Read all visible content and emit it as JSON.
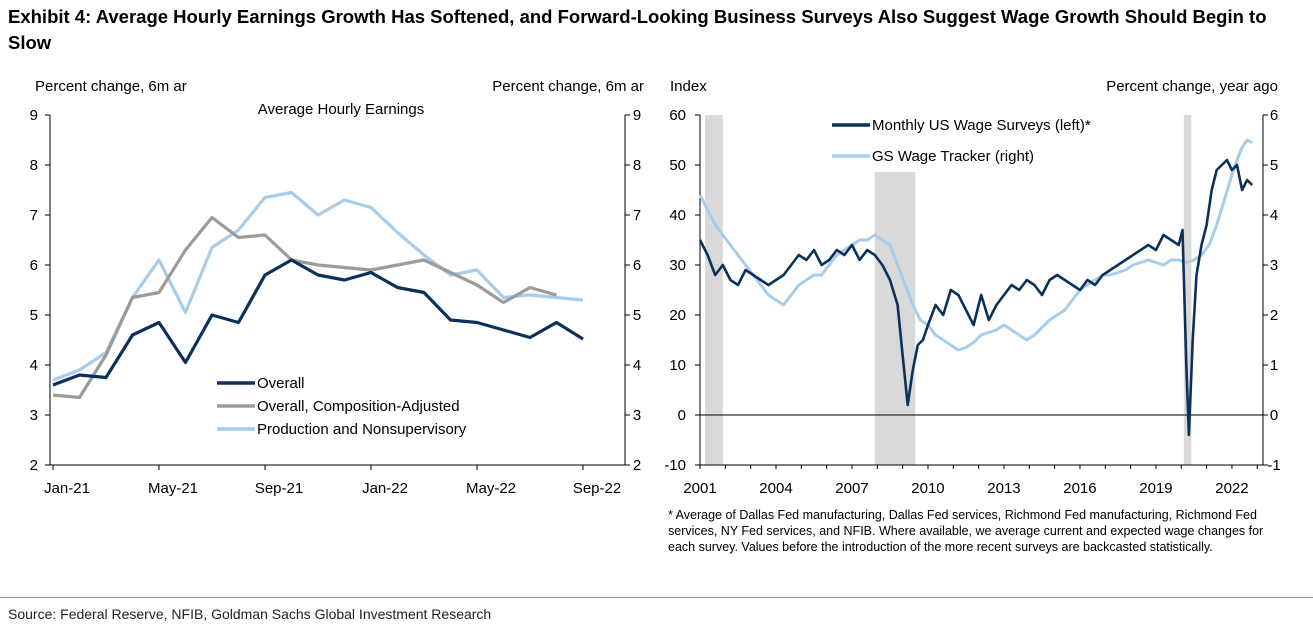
{
  "title": "Exhibit 4: Average Hourly Earnings Growth Has Softened, and Forward-Looking Business Surveys Also Suggest Wage Growth Should Begin to Slow",
  "footnote": "* Average of Dallas Fed manufacturing, Dallas Fed services, Richmond Fed manufacturing, Richmond Fed services, NY Fed services, and NFIB.  Where available, we average current and expected wage changes for each survey. Values before the introduction of the more recent surveys are backcasted statistically.",
  "source": "Source: Federal Reserve, NFIB, Goldman Sachs Global Investment Research",
  "colors": {
    "navy": "#0b3158",
    "gray": "#9b9b9b",
    "light_blue": "#a7cdea",
    "recession": "#d9d9d9"
  },
  "chart_data": [
    {
      "type": "line",
      "title": "Average Hourly Earnings",
      "ylabel_left": "Percent change, 6m ar",
      "ylabel_right": "Percent change, 6m ar",
      "ylim": [
        2,
        9
      ],
      "yticks": [
        "2",
        "3",
        "4",
        "5",
        "6",
        "7",
        "8",
        "9"
      ],
      "xticks": [
        "Jan-21",
        "May-21",
        "Sep-21",
        "Jan-22",
        "May-22",
        "Sep-22"
      ],
      "x": [
        "Jan-21",
        "Feb-21",
        "Mar-21",
        "Apr-21",
        "May-21",
        "Jun-21",
        "Jul-21",
        "Aug-21",
        "Sep-21",
        "Oct-21",
        "Nov-21",
        "Dec-21",
        "Jan-22",
        "Feb-22",
        "Mar-22",
        "Apr-22",
        "May-22",
        "Jun-22",
        "Jul-22",
        "Aug-22",
        "Sep-22"
      ],
      "legend_position": "bottom-left",
      "series": [
        {
          "name": "Overall",
          "color": "#0b3158",
          "values": [
            3.6,
            3.8,
            3.75,
            4.6,
            4.85,
            4.05,
            5.0,
            4.85,
            5.8,
            6.1,
            5.8,
            5.7,
            5.85,
            5.55,
            5.45,
            4.9,
            4.85,
            4.7,
            4.55,
            4.85,
            4.52
          ]
        },
        {
          "name": "Overall, Composition-Adjusted",
          "color": "#9b9b9b",
          "values": [
            3.4,
            3.35,
            4.2,
            5.35,
            5.45,
            6.3,
            6.95,
            6.55,
            6.6,
            6.1,
            6.0,
            5.95,
            5.9,
            6.0,
            6.1,
            5.85,
            5.6,
            5.25,
            5.55,
            5.4,
            null
          ]
        },
        {
          "name": "Production and Nonsupervisory",
          "color": "#a7cdea",
          "values": [
            3.7,
            3.9,
            4.25,
            5.35,
            6.1,
            5.05,
            6.35,
            6.7,
            7.35,
            7.45,
            7.0,
            7.3,
            7.15,
            6.65,
            6.2,
            5.8,
            5.9,
            5.35,
            5.4,
            5.35,
            5.3
          ]
        }
      ]
    },
    {
      "type": "line",
      "ylabel_left": "Index",
      "ylabel_right": "Percent change, year ago",
      "ylim_left": [
        -10,
        60
      ],
      "ylim_right": [
        -1,
        6
      ],
      "yticks_left": [
        "-10",
        "0",
        "10",
        "20",
        "30",
        "40",
        "50",
        "60"
      ],
      "yticks_right": [
        "-1",
        "0",
        "1",
        "2",
        "3",
        "4",
        "5",
        "6"
      ],
      "xticks": [
        "2001",
        "2004",
        "2007",
        "2010",
        "2013",
        "2016",
        "2019",
        "2022"
      ],
      "xlim": [
        2001,
        2023.2
      ],
      "recessions": [
        [
          2001.2,
          2001.9
        ],
        [
          2007.9,
          2009.5
        ],
        [
          2020.1,
          2020.4
        ]
      ],
      "legend_position": "top-center",
      "series": [
        {
          "name": "Monthly US Wage Surveys (left)*",
          "color": "#0b3158",
          "axis": "left",
          "x": [
            2001.0,
            2001.3,
            2001.6,
            2001.9,
            2002.2,
            2002.5,
            2002.8,
            2003.1,
            2003.4,
            2003.7,
            2004.0,
            2004.3,
            2004.6,
            2004.9,
            2005.2,
            2005.5,
            2005.8,
            2006.1,
            2006.4,
            2006.7,
            2007.0,
            2007.3,
            2007.6,
            2007.9,
            2008.2,
            2008.5,
            2008.8,
            2009.0,
            2009.2,
            2009.4,
            2009.6,
            2009.8,
            2010.0,
            2010.3,
            2010.6,
            2010.9,
            2011.2,
            2011.5,
            2011.8,
            2012.1,
            2012.4,
            2012.7,
            2013.0,
            2013.3,
            2013.6,
            2013.9,
            2014.2,
            2014.5,
            2014.8,
            2015.1,
            2015.4,
            2015.7,
            2016.0,
            2016.3,
            2016.6,
            2016.9,
            2017.2,
            2017.5,
            2017.8,
            2018.1,
            2018.4,
            2018.7,
            2019.0,
            2019.3,
            2019.6,
            2019.9,
            2020.05,
            2020.2,
            2020.3,
            2020.45,
            2020.6,
            2020.8,
            2021.0,
            2021.2,
            2021.4,
            2021.6,
            2021.8,
            2022.0,
            2022.2,
            2022.4,
            2022.6,
            2022.8
          ],
          "values": [
            35,
            32,
            28,
            30,
            27,
            26,
            29,
            28,
            27,
            26,
            27,
            28,
            30,
            32,
            31,
            33,
            30,
            31,
            33,
            32,
            34,
            31,
            33,
            32,
            30,
            27,
            22,
            12,
            2,
            9,
            14,
            15,
            18,
            22,
            20,
            25,
            24,
            21,
            18,
            24,
            19,
            22,
            24,
            26,
            25,
            27,
            26,
            24,
            27,
            28,
            27,
            26,
            25,
            27,
            26,
            28,
            29,
            30,
            31,
            32,
            33,
            34,
            33,
            36,
            35,
            34,
            37,
            10,
            -4,
            15,
            28,
            34,
            38,
            45,
            49,
            50,
            51,
            49,
            50,
            45,
            47,
            46
          ]
        },
        {
          "name": "GS Wage Tracker (right)",
          "color": "#a7cdea",
          "axis": "right",
          "x": [
            2001.0,
            2001.3,
            2001.6,
            2001.9,
            2002.2,
            2002.5,
            2002.8,
            2003.1,
            2003.4,
            2003.7,
            2004.0,
            2004.3,
            2004.6,
            2004.9,
            2005.2,
            2005.5,
            2005.8,
            2006.1,
            2006.4,
            2006.7,
            2007.0,
            2007.3,
            2007.6,
            2007.9,
            2008.2,
            2008.5,
            2008.8,
            2009.1,
            2009.4,
            2009.7,
            2010.0,
            2010.3,
            2010.6,
            2010.9,
            2011.2,
            2011.5,
            2011.8,
            2012.1,
            2012.4,
            2012.7,
            2013.0,
            2013.3,
            2013.6,
            2013.9,
            2014.2,
            2014.5,
            2014.8,
            2015.1,
            2015.4,
            2015.7,
            2016.0,
            2016.3,
            2016.6,
            2016.9,
            2017.2,
            2017.5,
            2017.8,
            2018.1,
            2018.4,
            2018.7,
            2019.0,
            2019.3,
            2019.6,
            2019.9,
            2020.2,
            2020.5,
            2020.8,
            2021.1,
            2021.4,
            2021.7,
            2022.0,
            2022.2,
            2022.4,
            2022.6,
            2022.8
          ],
          "values": [
            4.4,
            4.1,
            3.8,
            3.6,
            3.4,
            3.2,
            3.0,
            2.8,
            2.6,
            2.4,
            2.3,
            2.2,
            2.4,
            2.6,
            2.7,
            2.8,
            2.8,
            3.0,
            3.2,
            3.3,
            3.4,
            3.5,
            3.5,
            3.6,
            3.5,
            3.4,
            3.0,
            2.6,
            2.2,
            1.9,
            1.8,
            1.6,
            1.5,
            1.4,
            1.3,
            1.35,
            1.45,
            1.6,
            1.65,
            1.7,
            1.8,
            1.7,
            1.6,
            1.5,
            1.6,
            1.75,
            1.9,
            2.0,
            2.1,
            2.3,
            2.5,
            2.6,
            2.7,
            2.8,
            2.8,
            2.85,
            2.9,
            3.0,
            3.05,
            3.1,
            3.05,
            3.0,
            3.1,
            3.1,
            3.05,
            3.1,
            3.2,
            3.4,
            3.8,
            4.3,
            4.8,
            5.1,
            5.35,
            5.5,
            5.45
          ]
        }
      ]
    }
  ]
}
